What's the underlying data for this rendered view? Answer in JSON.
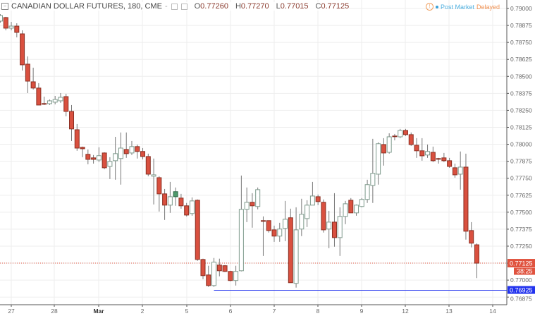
{
  "header": {
    "collapse_icon": "minus-square-icon",
    "title": "CANADIAN DOLLAR FUTURES, 180, CME",
    "dash": "-",
    "open_label": "O",
    "open": "0.77260",
    "high_label": "H",
    "high": "0.77270",
    "low_label": "L",
    "low": "0.77015",
    "close_label": "C",
    "close": "0.77125"
  },
  "status": {
    "warning_icon": "!",
    "post_market": "Post Market",
    "delayed": "Delayed"
  },
  "colors": {
    "down_fill": "#d9503f",
    "down_border": "#8a2f22",
    "up_fill": "#ffffff",
    "up_border": "#7e9a8c",
    "up_filled": "#4f9a6c",
    "wick": "#777777",
    "last_price": "#e0533f",
    "hline": "#2233ee"
  },
  "chart_data": {
    "type": "candlestick",
    "x_ticks": [
      "27",
      "28",
      "Mar",
      "2",
      "5",
      "6",
      "7",
      "8",
      "9",
      "12",
      "13",
      "14"
    ],
    "y_ticks": [
      "0.79000",
      "0.78875",
      "0.78750",
      "0.78625",
      "0.78500",
      "0.78375",
      "0.78250",
      "0.78125",
      "0.78000",
      "0.77875",
      "0.77750",
      "0.77625",
      "0.77500",
      "0.77375",
      "0.77250",
      "0.77125",
      "0.77000",
      "0.76875"
    ],
    "ylim": [
      0.76815,
      0.7905
    ],
    "grid": true,
    "candles_ohlc": [
      [
        0.78907,
        0.78958,
        0.78896,
        0.78948
      ],
      [
        0.78933,
        0.78938,
        0.78839,
        0.78855
      ],
      [
        0.78855,
        0.78901,
        0.78839,
        0.7887
      ],
      [
        0.7887,
        0.78891,
        0.78787,
        0.78824
      ],
      [
        0.78813,
        0.78839,
        0.78543,
        0.78585
      ],
      [
        0.7859,
        0.78647,
        0.78377,
        0.78465
      ],
      [
        0.7846,
        0.78564,
        0.78403,
        0.78414
      ],
      [
        0.78414,
        0.7845,
        0.78289,
        0.78289
      ],
      [
        0.783,
        0.78351,
        0.78289,
        0.78295
      ],
      [
        0.78299,
        0.7833,
        0.78289,
        0.7832
      ],
      [
        0.7831,
        0.78356,
        0.78294,
        0.7833
      ],
      [
        0.7832,
        0.78377,
        0.78305,
        0.78346
      ],
      [
        0.78351,
        0.78372,
        0.78206,
        0.78242
      ],
      [
        0.78242,
        0.78289,
        0.78024,
        0.78113
      ],
      [
        0.78107,
        0.78149,
        0.77952,
        0.77972
      ],
      [
        0.77978,
        0.77983,
        0.77905,
        0.77967
      ],
      [
        0.77926,
        0.77962,
        0.77853,
        0.77889
      ],
      [
        0.779,
        0.77921,
        0.77858,
        0.77889
      ],
      [
        0.77884,
        0.77978,
        0.77869,
        0.77916
      ],
      [
        0.77936,
        0.77941,
        0.77817,
        0.77827
      ],
      [
        0.77837,
        0.77905,
        0.77744,
        0.77874
      ],
      [
        0.77879,
        0.78055,
        0.77739,
        0.77931
      ],
      [
        0.77895,
        0.78087,
        0.77703,
        0.77972
      ],
      [
        0.77962,
        0.78087,
        0.779,
        0.77931
      ],
      [
        0.77936,
        0.78024,
        0.77921,
        0.77983
      ],
      [
        0.77983,
        0.77998,
        0.77895,
        0.77947
      ],
      [
        0.77947,
        0.77972,
        0.77889,
        0.7791
      ],
      [
        0.7791,
        0.77931,
        0.77765,
        0.7778
      ],
      [
        0.77765,
        0.77895,
        0.77557,
        0.77775
      ],
      [
        0.77754,
        0.77765,
        0.77505,
        0.77635
      ],
      [
        0.77635,
        0.77671,
        0.77443,
        0.77552
      ],
      [
        0.77552,
        0.77723,
        0.77495,
        0.77614
      ],
      [
        0.77614,
        0.77682,
        0.77547,
        0.77651
      ],
      [
        0.77604,
        0.77635,
        0.77526,
        0.77547
      ],
      [
        0.77547,
        0.77568,
        0.77469,
        0.77479
      ],
      [
        0.7749,
        0.77609,
        0.77474,
        0.77583
      ],
      [
        0.77588,
        0.77594,
        0.77142,
        0.77152
      ],
      [
        0.77152,
        0.77158,
        0.77007,
        0.77033
      ],
      [
        0.77038,
        0.77106,
        0.7695,
        0.7696
      ],
      [
        0.7696,
        0.77163,
        0.7695,
        0.77132
      ],
      [
        0.77111,
        0.77158,
        0.77028,
        0.77069
      ],
      [
        0.77106,
        0.77111,
        0.77059,
        0.77064
      ],
      [
        0.77064,
        0.77069,
        0.76991,
        0.76997
      ],
      [
        0.76997,
        0.77106,
        0.7696,
        0.77064
      ],
      [
        0.77069,
        0.7777,
        0.77064,
        0.77521
      ],
      [
        0.77521,
        0.77682,
        0.77427,
        0.77573
      ],
      [
        0.77573,
        0.7764,
        0.77386,
        0.77547
      ],
      [
        0.77542,
        0.77682,
        0.77521,
        0.77666
      ],
      [
        0.77438,
        0.77469,
        0.77178,
        0.77435
      ],
      [
        0.77438,
        0.77438,
        0.7735,
        0.77365
      ],
      [
        0.7737,
        0.77401,
        0.77282,
        0.77324
      ],
      [
        0.77324,
        0.77422,
        0.77282,
        0.77376
      ],
      [
        0.77381,
        0.77583,
        0.77287,
        0.77448
      ],
      [
        0.77459,
        0.77526,
        0.76981,
        0.76981
      ],
      [
        0.76976,
        0.77536,
        0.76945,
        0.7737
      ],
      [
        0.77376,
        0.77599,
        0.77324,
        0.77485
      ],
      [
        0.77453,
        0.77588,
        0.77391,
        0.77552
      ],
      [
        0.77552,
        0.77723,
        0.77552,
        0.77619
      ],
      [
        0.77614,
        0.7763,
        0.77552,
        0.77578
      ],
      [
        0.77573,
        0.77594,
        0.7735,
        0.7737
      ],
      [
        0.77376,
        0.7751,
        0.77235,
        0.77427
      ],
      [
        0.77427,
        0.7764,
        0.77246,
        0.77313
      ],
      [
        0.77313,
        0.77536,
        0.77178,
        0.77469
      ],
      [
        0.77469,
        0.77583,
        0.77412,
        0.77562
      ],
      [
        0.77588,
        0.77604,
        0.77495,
        0.77495
      ],
      [
        0.77495,
        0.77557,
        0.77474,
        0.77552
      ],
      [
        0.77542,
        0.77604,
        0.77536,
        0.77594
      ],
      [
        0.77594,
        0.77739,
        0.77568,
        0.77703
      ],
      [
        0.77697,
        0.7804,
        0.77568,
        0.77786
      ],
      [
        0.7778,
        0.78014,
        0.77703,
        0.78004
      ],
      [
        0.77998,
        0.78045,
        0.77843,
        0.77936
      ],
      [
        0.77941,
        0.78081,
        0.77931,
        0.78055
      ],
      [
        0.78061,
        0.78076,
        0.78029,
        0.7806
      ],
      [
        0.78055,
        0.78113,
        0.78045,
        0.78102
      ],
      [
        0.78102,
        0.78113,
        0.78061,
        0.78071
      ],
      [
        0.78071,
        0.78087,
        0.77988,
        0.77998
      ],
      [
        0.77993,
        0.78045,
        0.779,
        0.77952
      ],
      [
        0.77952,
        0.78045,
        0.77879,
        0.77915
      ],
      [
        0.77921,
        0.77998,
        0.779,
        0.77947
      ],
      [
        0.77941,
        0.77983,
        0.77869,
        0.77879
      ],
      [
        0.77895,
        0.779,
        0.77858,
        0.7789
      ],
      [
        0.779,
        0.77936,
        0.77869,
        0.77879
      ],
      [
        0.77879,
        0.779,
        0.77827,
        0.77837
      ],
      [
        0.77827,
        0.77858,
        0.77754,
        0.77775
      ],
      [
        0.7778,
        0.77947,
        0.77666,
        0.77832
      ],
      [
        0.77832,
        0.77931,
        0.77298,
        0.7736
      ],
      [
        0.77365,
        0.77427,
        0.77241,
        0.77272
      ],
      [
        0.7726,
        0.7727,
        0.77015,
        0.77125
      ]
    ],
    "filled_up_candle_index": 32,
    "last_price": "0.77125",
    "countdown": "38:25",
    "horizontal_line": {
      "value": 0.76925,
      "label": "0.76925",
      "start_candle_index": 39
    }
  }
}
